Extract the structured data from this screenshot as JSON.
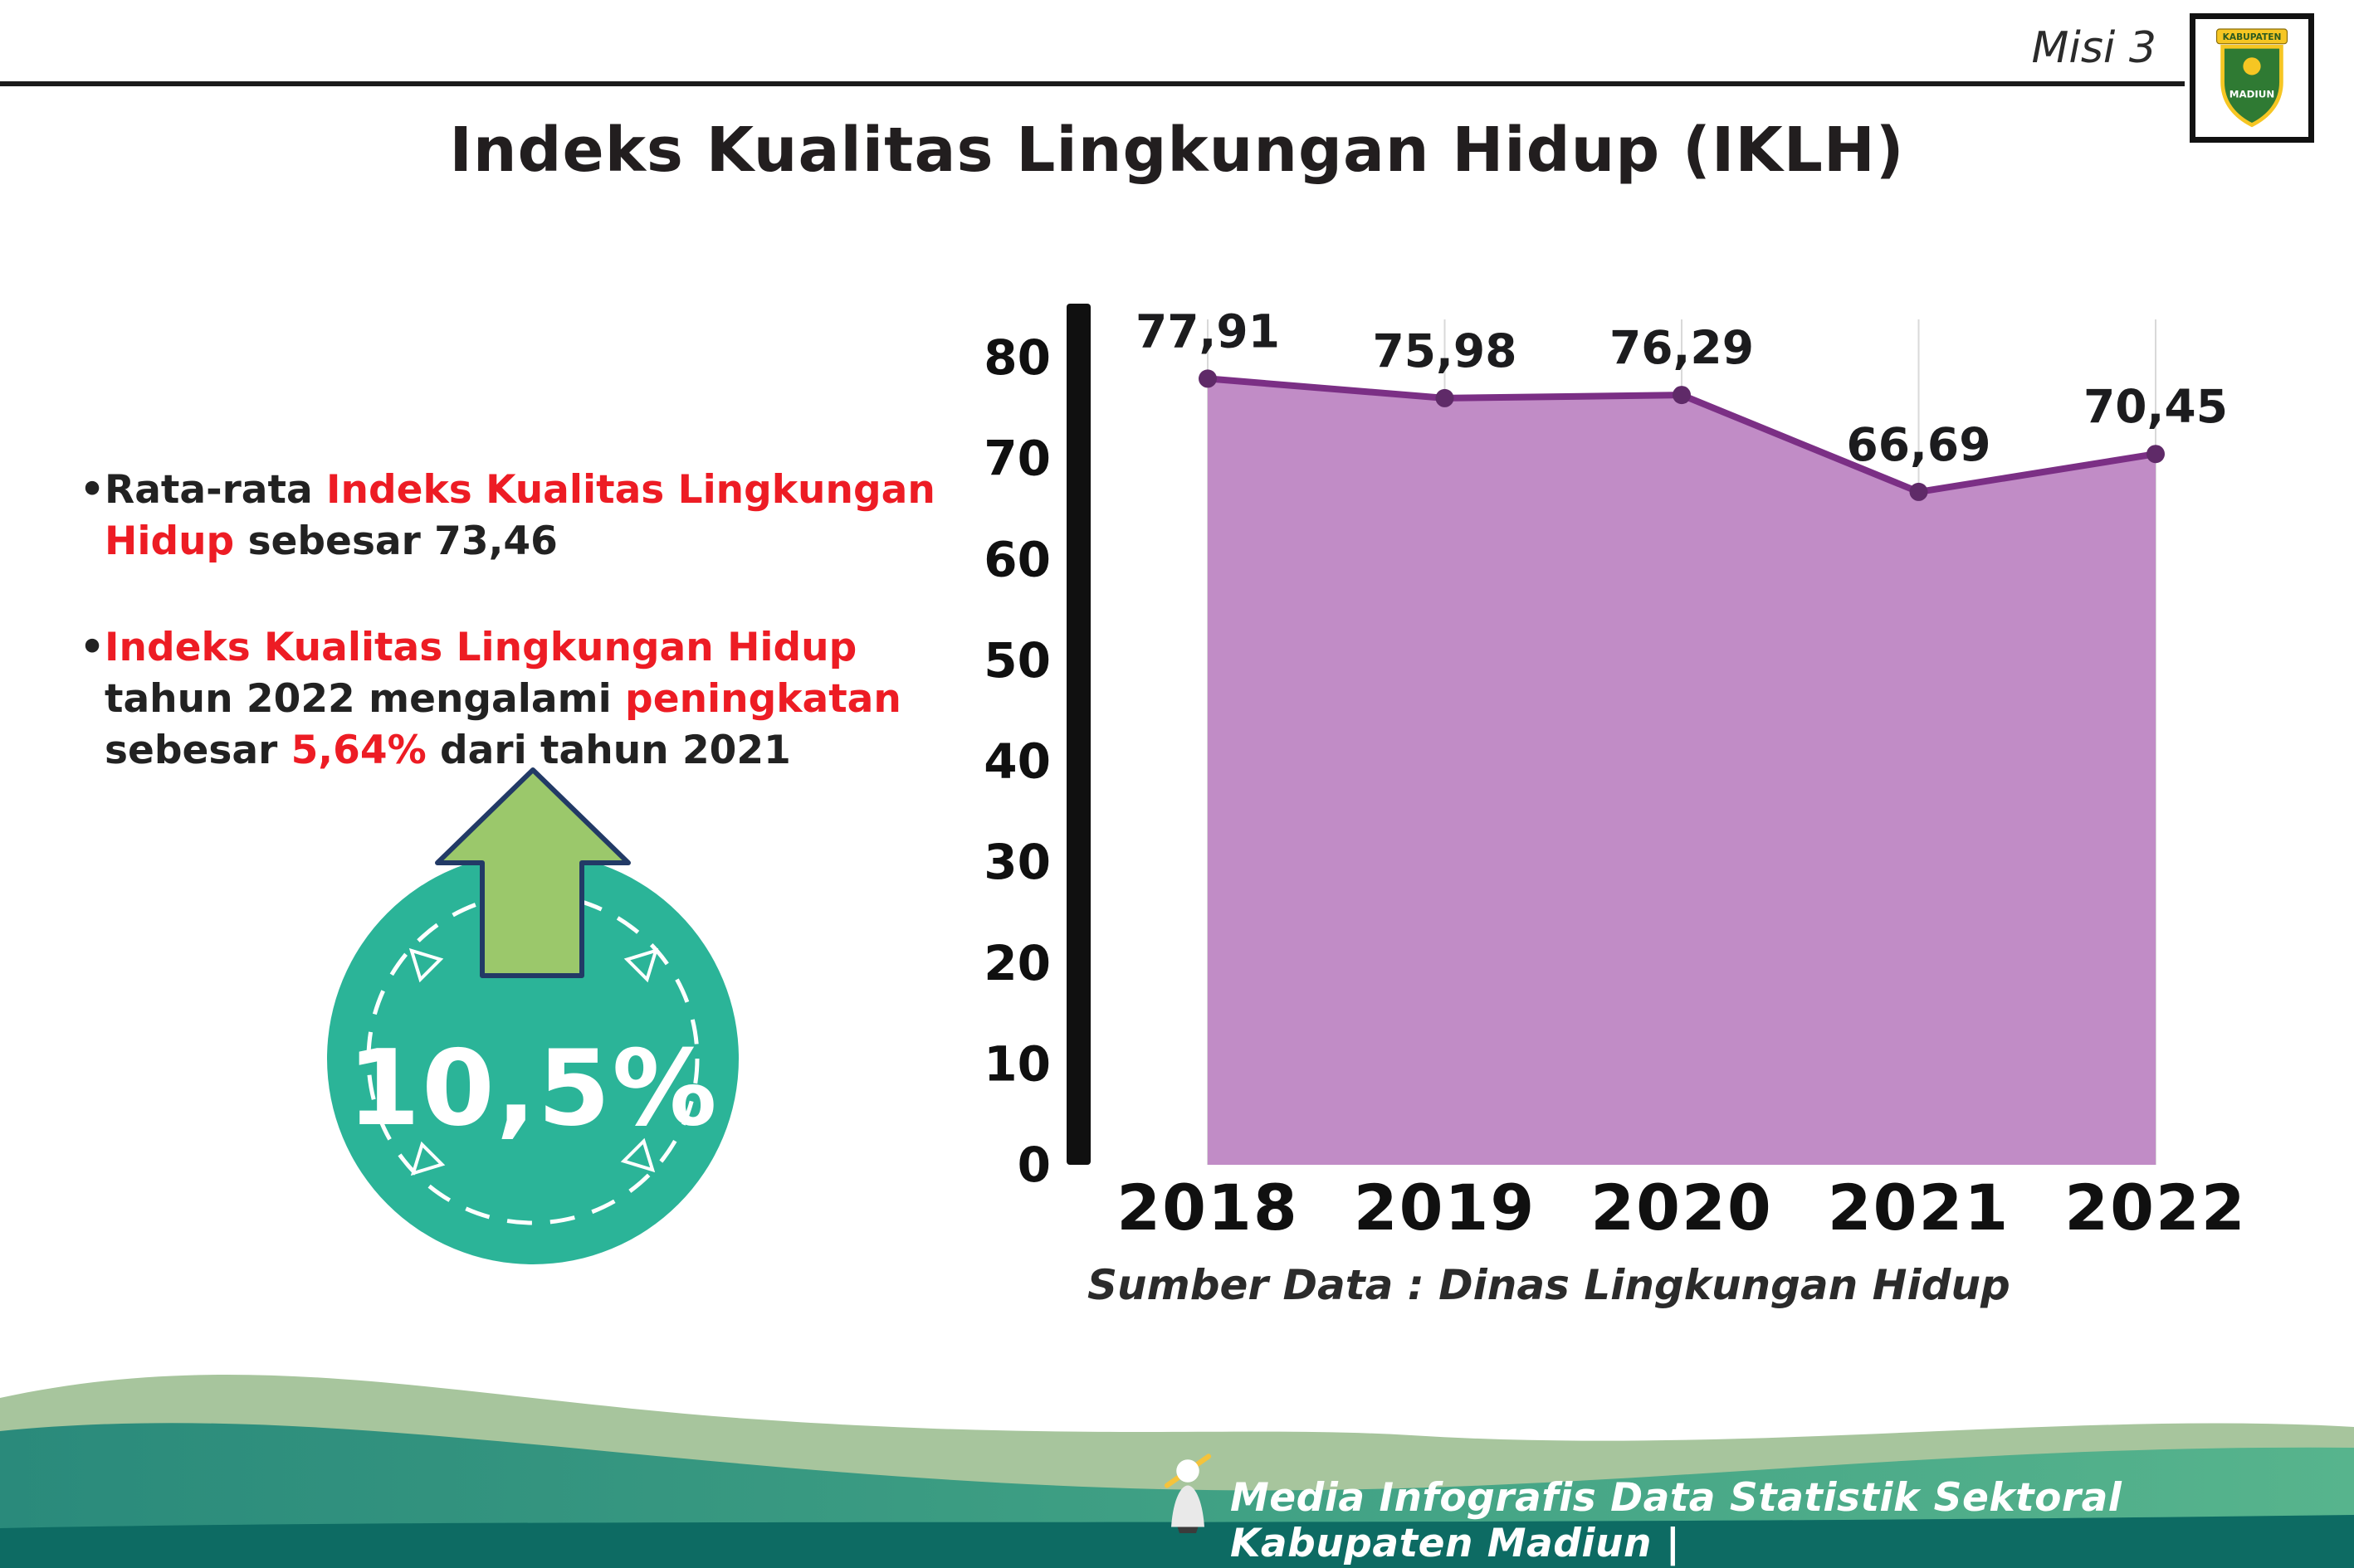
{
  "header": {
    "misi": "Misi 3",
    "title": "Indeks Kualitas Lingkungan Hidup (IKLH)",
    "logo": {
      "top_text": "KABUPATEN",
      "bottom_text": "MADIUN"
    }
  },
  "bullets": {
    "marker": "•",
    "b1": {
      "s1": "Rata-rata ",
      "s2": "Indeks Kualitas Lingkungan Hidup",
      "s3": " sebesar 73,46"
    },
    "b2": {
      "s1": "Indeks Kualitas Lingkungan Hidup",
      "s2": " tahun 2022 mengalami ",
      "s3": "peningkatan",
      "s4": " sebesar ",
      "s5": "5,64%",
      "s6": " dari tahun 2021"
    }
  },
  "badge": {
    "value": "10,5%"
  },
  "chart_data": {
    "type": "area",
    "title": "Indeks Kualitas Lingkungan Hidup (IKLH)",
    "categories": [
      "2018",
      "2019",
      "2020",
      "2021",
      "2022"
    ],
    "values": [
      77.91,
      75.98,
      76.29,
      66.69,
      70.45
    ],
    "value_labels": [
      "77,91",
      "75,98",
      "76,29",
      "66,69",
      "70,45"
    ],
    "xlabel": "",
    "ylabel": "",
    "ylim": [
      0,
      80
    ],
    "yticks": [
      0,
      10,
      20,
      30,
      40,
      50,
      60,
      70,
      80
    ],
    "grid": "vertical-light",
    "legend": "none",
    "line_color": "#7b2f85",
    "point_color": "#5f2a68",
    "fill_color": "#c18cc6",
    "source": "Sumber Data : Dinas Lingkungan Hidup"
  },
  "footer": {
    "credit": "Media Infografis Data Statistik Sektoral Kabupaten Madiun |"
  },
  "colors": {
    "accent_red": "#ed1c24",
    "badge_teal": "#2bb498",
    "arrow_green": "#9bc86b",
    "wave_sage": "#a7c59d",
    "wave_teal_dark": "#2a8a7b",
    "wave_teal_light": "#57b48d",
    "wave_bottom": "#0d6b63"
  }
}
